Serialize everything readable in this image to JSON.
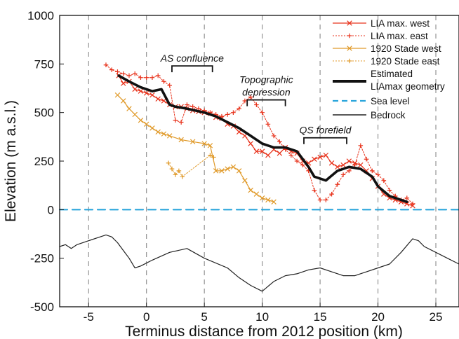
{
  "chart_data": {
    "type": "line",
    "title": "",
    "xlabel": "Terminus distance from 2012 position (km)",
    "ylabel": "Elevation (m a.s.l.)",
    "xlim": [
      -7.5,
      27
    ],
    "ylim": [
      -500,
      1000
    ],
    "xticks": [
      -5,
      0,
      5,
      10,
      15,
      20,
      25
    ],
    "yticks": [
      -500,
      -250,
      0,
      250,
      500,
      750,
      1000
    ],
    "vertical_dashed_lines_at": [
      -5,
      0,
      5,
      10,
      15,
      20,
      25
    ],
    "legend_position": "top-right",
    "legend": [
      "LIA max. west",
      "LIA max. east",
      "1920 Stade west",
      "1920 Stade east",
      "Estimated LIAmax geometry",
      "Sea level",
      "Bedrock"
    ],
    "annotations": [
      {
        "text": "AS confluence",
        "x_range": [
          2.2,
          5.7
        ],
        "y": 740
      },
      {
        "text": "Topographic depression",
        "x_range": [
          8.7,
          12
        ],
        "y": 565
      },
      {
        "text": "QS forefield",
        "x_range": [
          13.6,
          17.3
        ],
        "y": 370
      }
    ],
    "colors": {
      "lia": "#e8331c",
      "stade": "#e09a2a",
      "estimated": "#111111",
      "sea": "#2aa5dc",
      "bedrock": "#222222",
      "grid": "#8a8a8a"
    },
    "series": [
      {
        "name": "LIA max. west",
        "marker": "x",
        "x": [
          -2.4,
          -2,
          -1.5,
          -1,
          -0.5,
          0,
          0.5,
          1,
          1.5,
          2,
          2.5,
          3,
          3.5,
          4,
          4.5,
          5,
          5.5,
          6,
          6.5,
          7,
          7.5,
          8,
          8.5,
          9,
          9.5,
          10,
          10.5,
          11,
          11.5,
          12,
          12.5,
          13,
          13.5,
          14,
          14.5,
          15,
          15.5,
          16,
          16.5,
          17,
          17.5,
          18,
          18.5,
          19,
          19.5,
          20,
          20.5,
          21,
          21.5,
          22,
          22.5,
          23
        ],
        "y": [
          690,
          650,
          660,
          620,
          610,
          600,
          590,
          570,
          560,
          540,
          530,
          530,
          520,
          510,
          505,
          500,
          495,
          475,
          470,
          440,
          430,
          400,
          380,
          340,
          300,
          300,
          280,
          310,
          290,
          320,
          300,
          290,
          250,
          240,
          260,
          270,
          280,
          240,
          220,
          230,
          250,
          240,
          230,
          200,
          160,
          120,
          80,
          60,
          50,
          40,
          30,
          20
        ]
      },
      {
        "name": "LIA max. east",
        "marker": "+",
        "x": [
          -3.5,
          -3,
          -2.5,
          -2,
          -1.5,
          -1,
          -0.5,
          0,
          0.5,
          1,
          1.5,
          2,
          2.5,
          3,
          3.5,
          4,
          4.5,
          5,
          5.5,
          6,
          6.5,
          7,
          7.5,
          8,
          8.5,
          9,
          9.5,
          10,
          10.5,
          11,
          11.5,
          12,
          12.5,
          13,
          13.5,
          14,
          14.5,
          15,
          15.5,
          16,
          16.5,
          17,
          17.5,
          18,
          18.5,
          19,
          19.5,
          20,
          20.5,
          21,
          21.5,
          22,
          22.5,
          23
        ],
        "y": [
          745,
          720,
          710,
          700,
          690,
          700,
          680,
          680,
          680,
          690,
          660,
          640,
          460,
          450,
          540,
          530,
          520,
          510,
          500,
          490,
          480,
          490,
          500,
          520,
          560,
          580,
          540,
          500,
          440,
          380,
          350,
          310,
          280,
          250,
          230,
          200,
          100,
          50,
          50,
          80,
          130,
          180,
          200,
          230,
          330,
          260,
          200,
          180,
          150,
          100,
          70,
          50,
          60,
          30
        ]
      },
      {
        "name": "1920 Stade west",
        "marker": "x",
        "x": [
          -2.5,
          -2,
          -1.5,
          -1,
          -0.5,
          0,
          0.5,
          1,
          1.5,
          2,
          3,
          4,
          5,
          5.5,
          6,
          6.5,
          7,
          7.5,
          8,
          8.5,
          9,
          9.5,
          10,
          10.5,
          11
        ],
        "y": [
          590,
          560,
          520,
          490,
          460,
          440,
          420,
          400,
          390,
          380,
          360,
          350,
          340,
          330,
          200,
          200,
          210,
          220,
          200,
          150,
          100,
          80,
          60,
          50,
          40
        ]
      },
      {
        "name": "1920 Stade east",
        "marker": "+",
        "x": [
          1.9,
          2.2,
          2.5,
          2.8,
          3.1,
          5.5,
          5.8
        ],
        "y": [
          240,
          210,
          180,
          200,
          170,
          280,
          270
        ]
      },
      {
        "name": "Estimated LIAmax geometry",
        "x": [
          -2.4,
          -1.5,
          -0.5,
          0.5,
          1.3,
          2,
          2.5,
          3.5,
          5,
          6,
          7,
          8,
          9,
          10,
          11,
          12,
          13,
          14,
          14.5,
          15.5,
          16.5,
          17.5,
          18.5,
          19.5,
          20,
          21,
          22.5
        ],
        "y": [
          690,
          660,
          630,
          610,
          620,
          540,
          530,
          520,
          500,
          480,
          450,
          420,
          380,
          340,
          320,
          320,
          300,
          220,
          170,
          150,
          200,
          220,
          210,
          170,
          120,
          70,
          40
        ]
      },
      {
        "name": "Sea level",
        "x": [
          -7.5,
          27
        ],
        "y": [
          0,
          0
        ]
      },
      {
        "name": "Bedrock",
        "x": [
          -7.5,
          -7,
          -6.5,
          -6,
          -5,
          -4,
          -3.5,
          -3,
          -2.5,
          -2,
          -1.5,
          -1,
          -0.5,
          0.5,
          2,
          3.5,
          5,
          7,
          8,
          9,
          10,
          11,
          12,
          13,
          14,
          15,
          16,
          17,
          18,
          19,
          20,
          21,
          22,
          23,
          23.5,
          24,
          25,
          26,
          27
        ],
        "y": [
          -190,
          -180,
          -200,
          -180,
          -160,
          -140,
          -130,
          -140,
          -170,
          -210,
          -250,
          -300,
          -290,
          -260,
          -220,
          -200,
          -250,
          -300,
          -350,
          -390,
          -420,
          -370,
          -340,
          -330,
          -310,
          -300,
          -320,
          -340,
          -340,
          -320,
          -300,
          -280,
          -220,
          -150,
          -160,
          -190,
          -220,
          -250,
          -280
        ]
      }
    ]
  }
}
